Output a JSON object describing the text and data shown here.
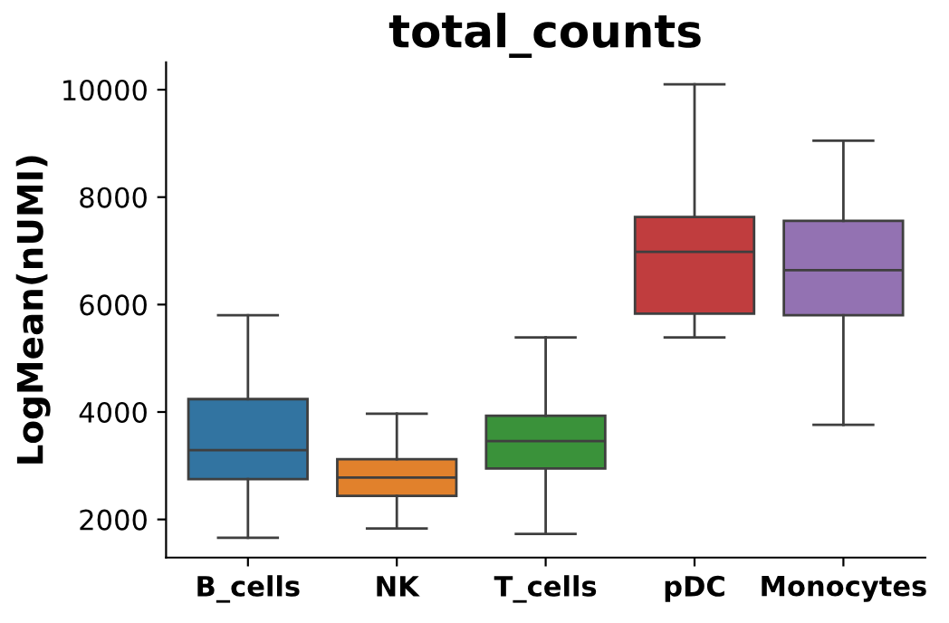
{
  "chart_data": {
    "type": "box",
    "title": "total_counts",
    "ylabel": "LogMean(nUMI)",
    "categories": [
      "B_cells",
      "NK",
      "T_cells",
      "pDC",
      "Monocytes"
    ],
    "colors": [
      "#3274a1",
      "#e1812c",
      "#3a923a",
      "#c03d3e",
      "#9372b2"
    ],
    "boxes": [
      {
        "low": 1660,
        "q1": 2750,
        "median": 3290,
        "q3": 4240,
        "high": 5800
      },
      {
        "low": 1830,
        "q1": 2440,
        "median": 2780,
        "q3": 3120,
        "high": 3970
      },
      {
        "low": 1730,
        "q1": 2950,
        "median": 3460,
        "q3": 3930,
        "high": 5390
      },
      {
        "low": 5390,
        "q1": 5830,
        "median": 6980,
        "q3": 7630,
        "high": 10100
      },
      {
        "low": 3760,
        "q1": 5800,
        "median": 6640,
        "q3": 7560,
        "high": 9050
      }
    ],
    "ylim": [
      1290,
      10510
    ],
    "yticks": [
      2000,
      4000,
      6000,
      8000,
      10000
    ],
    "grid": false,
    "legend": false
  }
}
